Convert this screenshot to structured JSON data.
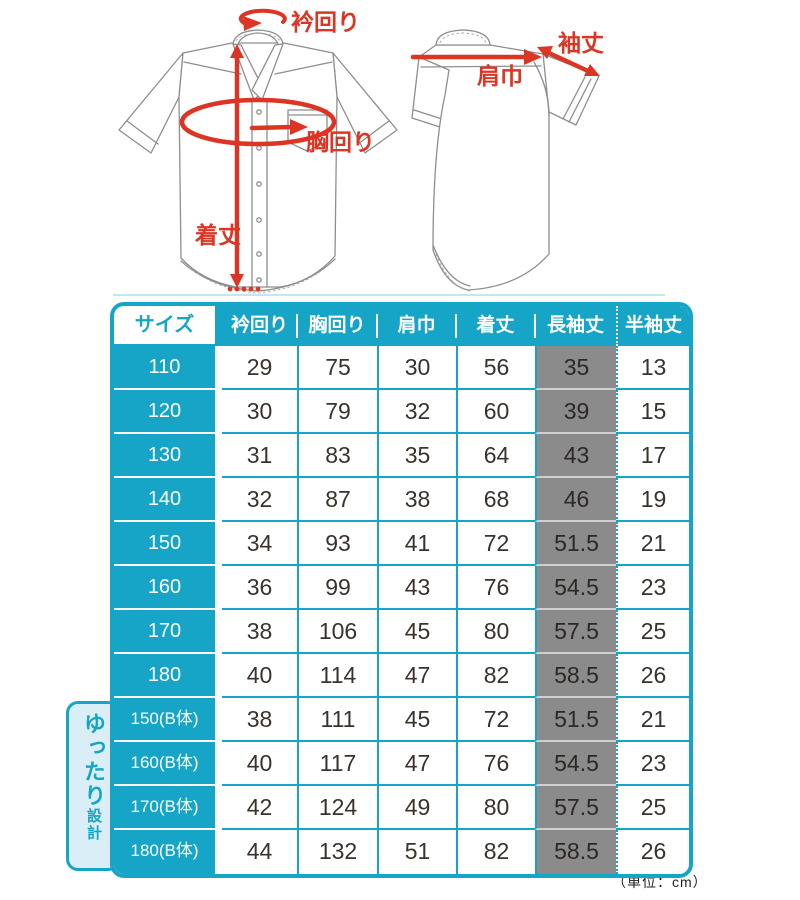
{
  "colors": {
    "accent": "#17a5c7",
    "gray": "#8b8b8b",
    "red": "#dd3524",
    "light": "#d9eef6",
    "line": "#c3e6f2",
    "ink": "#39322d",
    "shirt": "#8e8e8e"
  },
  "diagram": {
    "labels": {
      "collar": "衿回り",
      "chest": "胸回り",
      "length": "着丈",
      "shoulder": "肩巾",
      "sleeve": "袖丈"
    }
  },
  "chart_data": {
    "type": "table",
    "title": "",
    "columns": [
      "サイズ",
      "衿回り",
      "胸回り",
      "肩巾",
      "着丈",
      "長袖丈",
      "半袖丈"
    ],
    "rows": [
      [
        "110",
        "29",
        "75",
        "30",
        "56",
        "35",
        "13"
      ],
      [
        "120",
        "30",
        "79",
        "32",
        "60",
        "39",
        "15"
      ],
      [
        "130",
        "31",
        "83",
        "35",
        "64",
        "43",
        "17"
      ],
      [
        "140",
        "32",
        "87",
        "38",
        "68",
        "46",
        "19"
      ],
      [
        "150",
        "34",
        "93",
        "41",
        "72",
        "51.5",
        "21"
      ],
      [
        "160",
        "36",
        "99",
        "43",
        "76",
        "54.5",
        "23"
      ],
      [
        "170",
        "38",
        "106",
        "45",
        "80",
        "57.5",
        "25"
      ],
      [
        "180",
        "40",
        "114",
        "47",
        "82",
        "58.5",
        "26"
      ],
      [
        "150(B体)",
        "38",
        "111",
        "45",
        "72",
        "51.5",
        "21"
      ],
      [
        "160(B体)",
        "40",
        "117",
        "47",
        "76",
        "54.5",
        "23"
      ],
      [
        "170(B体)",
        "42",
        "124",
        "49",
        "80",
        "57.5",
        "25"
      ],
      [
        "180(B体)",
        "44",
        "132",
        "51",
        "82",
        "58.5",
        "26"
      ]
    ],
    "highlighted_column": "長袖丈",
    "loose_fit_row_indices": [
      8,
      9,
      10,
      11
    ],
    "unit": "cm"
  },
  "loose_fit_badge": {
    "main": "ゆったり",
    "sub": "設計"
  },
  "unit_note": "（単位：cm）"
}
